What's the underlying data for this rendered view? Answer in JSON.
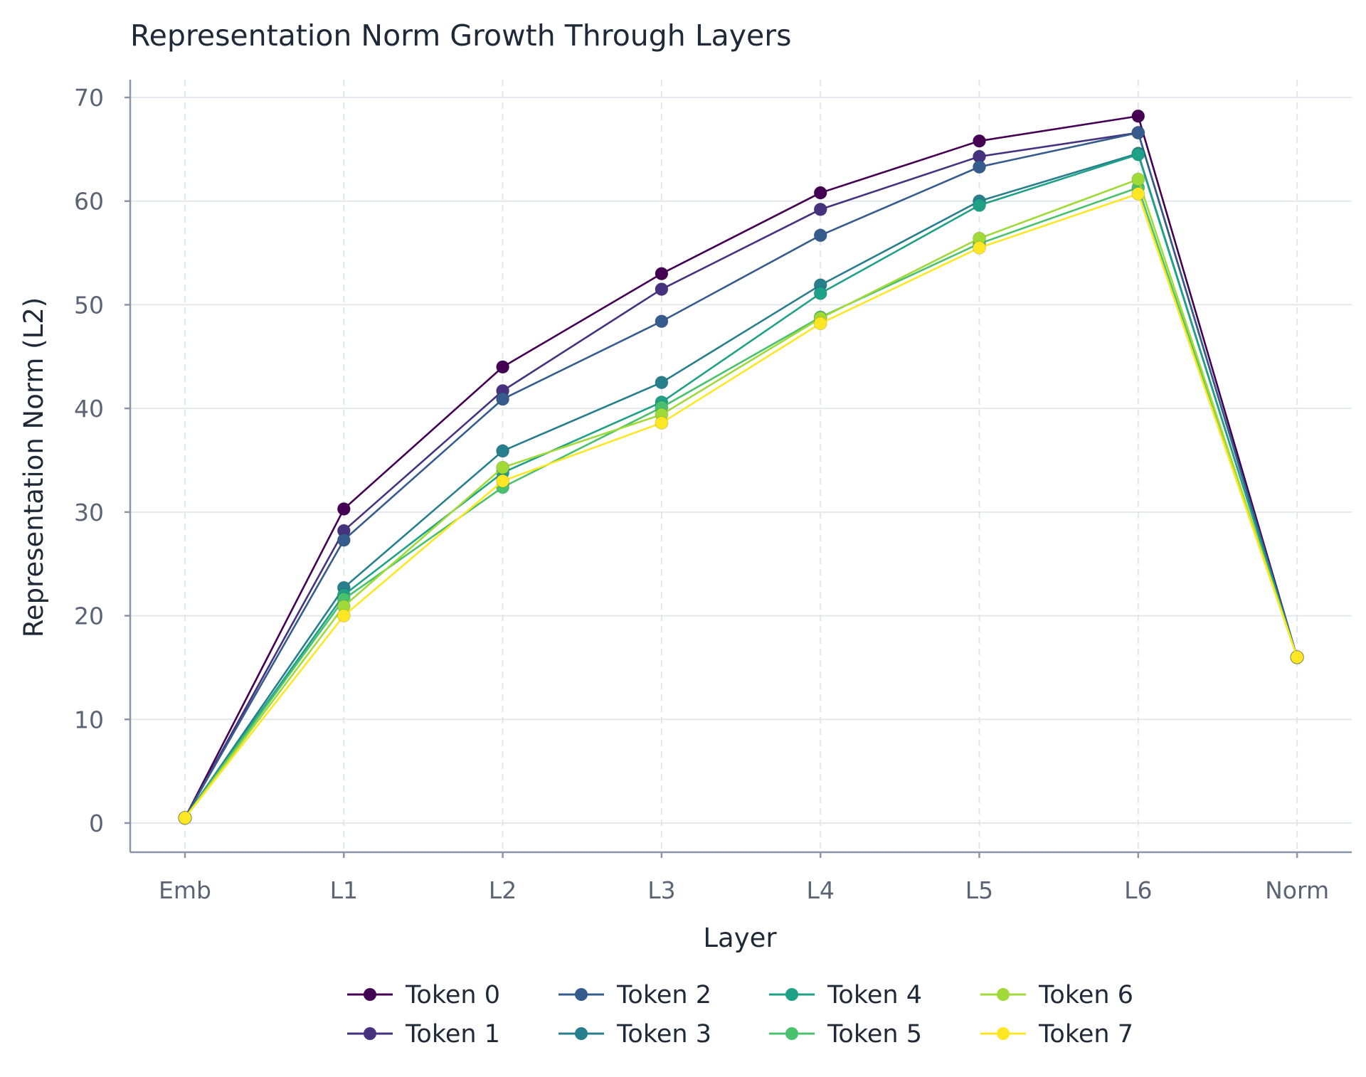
{
  "chart_data": {
    "type": "line",
    "title": "Representation Norm Growth Through Layers",
    "xlabel": "Layer",
    "ylabel": "Representation Norm (L2)",
    "categories": [
      "Emb",
      "L1",
      "L2",
      "L3",
      "L4",
      "L5",
      "L6",
      "Norm"
    ],
    "ylim": [
      -2.8,
      70
    ],
    "yticks": [
      0,
      10,
      20,
      30,
      40,
      50,
      60,
      70
    ],
    "grid": true,
    "legend_position": "bottom",
    "series": [
      {
        "name": "Token 0",
        "color": "#440154",
        "values": [
          0.5,
          30.3,
          44.0,
          53.0,
          60.8,
          65.8,
          68.2,
          16.0
        ]
      },
      {
        "name": "Token 1",
        "color": "#46327e",
        "values": [
          0.5,
          28.2,
          41.7,
          51.5,
          59.2,
          64.3,
          66.6,
          16.0
        ]
      },
      {
        "name": "Token 2",
        "color": "#365c8d",
        "values": [
          0.5,
          27.3,
          40.9,
          48.4,
          56.7,
          63.3,
          66.6,
          16.0
        ]
      },
      {
        "name": "Token 3",
        "color": "#277f8e",
        "values": [
          0.5,
          22.7,
          35.9,
          42.5,
          51.9,
          60.0,
          64.6,
          16.0
        ]
      },
      {
        "name": "Token 4",
        "color": "#1fa187",
        "values": [
          0.5,
          22.0,
          33.8,
          40.6,
          51.1,
          59.6,
          64.5,
          16.0
        ]
      },
      {
        "name": "Token 5",
        "color": "#4ac16d",
        "values": [
          0.5,
          21.6,
          32.4,
          40.1,
          48.8,
          55.9,
          61.3,
          16.0
        ]
      },
      {
        "name": "Token 6",
        "color": "#a0da39",
        "values": [
          0.5,
          20.9,
          34.3,
          39.4,
          48.7,
          56.4,
          62.1,
          16.0
        ]
      },
      {
        "name": "Token 7",
        "color": "#fde725",
        "values": [
          0.5,
          20.0,
          33.0,
          38.6,
          48.2,
          55.5,
          60.7,
          16.0
        ]
      }
    ]
  }
}
